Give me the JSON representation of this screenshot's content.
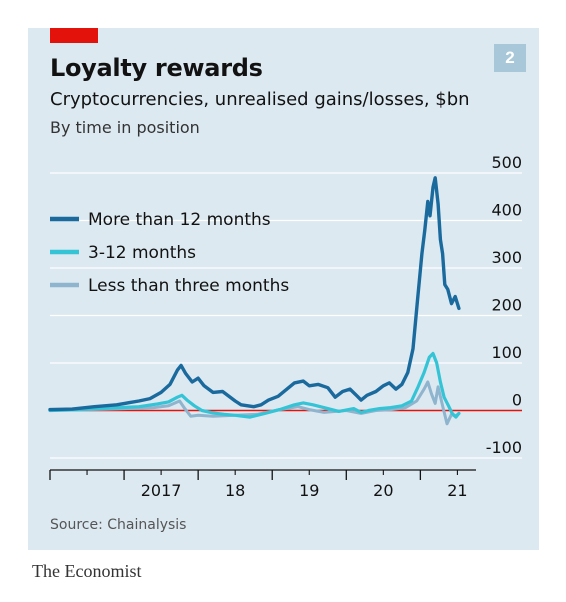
{
  "header": {
    "number_badge": "2",
    "title": "Loyalty rewards",
    "subtitle": "Cryptocurrencies, unrealised gains/losses, $bn",
    "subsubtitle": "By time in position"
  },
  "source": "Source: Chainalysis",
  "brand": "The Economist",
  "colors": {
    "background": "#dce9f1",
    "red_tag": "#e3120b",
    "badge": "#a8c8da",
    "series_long": "#1a6a9e",
    "series_mid": "#34c4d6",
    "series_short": "#8fb4cd",
    "zero_line": "#e3120b",
    "grid": "#ffffff"
  },
  "chart_data": {
    "type": "line",
    "title": "Loyalty rewards",
    "subtitle": "Cryptocurrencies, unrealised gains/losses, $bn",
    "xlabel": "",
    "ylabel": "",
    "xlim": [
      2016.0,
      2021.67
    ],
    "ylim": [
      -100,
      500
    ],
    "yticks": [
      -100,
      0,
      100,
      200,
      300,
      400,
      500
    ],
    "ytick_labels": [
      "-100",
      "0",
      "100",
      "200",
      "300",
      "400",
      "500"
    ],
    "xtick_labels": [
      {
        "x": 2017.0,
        "label": "2017"
      },
      {
        "x": 2018.0,
        "label": "18"
      },
      {
        "x": 2019.0,
        "label": "19"
      },
      {
        "x": 2020.0,
        "label": "20"
      },
      {
        "x": 2021.0,
        "label": "21"
      }
    ],
    "x_major_ticks": [
      2016.0,
      2017.0,
      2018.0,
      2019.0,
      2020.0,
      2021.0
    ],
    "x_minor_ticks": [
      2016.5,
      2017.5,
      2018.5,
      2019.5,
      2020.5,
      2021.5
    ],
    "grid": true,
    "legend_position": "top-left",
    "series": [
      {
        "name": "More than 12 months",
        "color": "#1a6a9e",
        "points": [
          [
            2016.0,
            2
          ],
          [
            2016.3,
            3
          ],
          [
            2016.6,
            8
          ],
          [
            2016.9,
            12
          ],
          [
            2017.2,
            20
          ],
          [
            2017.35,
            25
          ],
          [
            2017.5,
            38
          ],
          [
            2017.62,
            55
          ],
          [
            2017.72,
            85
          ],
          [
            2017.77,
            95
          ],
          [
            2017.83,
            78
          ],
          [
            2017.92,
            60
          ],
          [
            2018.0,
            68
          ],
          [
            2018.08,
            52
          ],
          [
            2018.2,
            38
          ],
          [
            2018.33,
            40
          ],
          [
            2018.5,
            20
          ],
          [
            2018.58,
            12
          ],
          [
            2018.75,
            8
          ],
          [
            2018.85,
            12
          ],
          [
            2018.95,
            22
          ],
          [
            2019.08,
            30
          ],
          [
            2019.3,
            58
          ],
          [
            2019.42,
            62
          ],
          [
            2019.5,
            52
          ],
          [
            2019.62,
            55
          ],
          [
            2019.75,
            48
          ],
          [
            2019.85,
            28
          ],
          [
            2019.95,
            40
          ],
          [
            2020.05,
            45
          ],
          [
            2020.15,
            30
          ],
          [
            2020.2,
            22
          ],
          [
            2020.28,
            32
          ],
          [
            2020.4,
            40
          ],
          [
            2020.5,
            52
          ],
          [
            2020.58,
            58
          ],
          [
            2020.67,
            45
          ],
          [
            2020.75,
            55
          ],
          [
            2020.83,
            80
          ],
          [
            2020.9,
            130
          ],
          [
            2020.96,
            230
          ],
          [
            2021.02,
            330
          ],
          [
            2021.06,
            380
          ],
          [
            2021.1,
            440
          ],
          [
            2021.13,
            410
          ],
          [
            2021.17,
            470
          ],
          [
            2021.2,
            490
          ],
          [
            2021.24,
            435
          ],
          [
            2021.27,
            360
          ],
          [
            2021.3,
            330
          ],
          [
            2021.33,
            265
          ],
          [
            2021.37,
            255
          ],
          [
            2021.42,
            225
          ],
          [
            2021.47,
            240
          ],
          [
            2021.52,
            215
          ]
        ]
      },
      {
        "name": "3-12 months",
        "color": "#34c4d6",
        "points": [
          [
            2016.0,
            0
          ],
          [
            2016.4,
            2
          ],
          [
            2016.8,
            5
          ],
          [
            2017.2,
            8
          ],
          [
            2017.45,
            14
          ],
          [
            2017.6,
            18
          ],
          [
            2017.72,
            28
          ],
          [
            2017.78,
            32
          ],
          [
            2017.85,
            22
          ],
          [
            2017.95,
            10
          ],
          [
            2018.05,
            0
          ],
          [
            2018.2,
            -5
          ],
          [
            2018.35,
            -8
          ],
          [
            2018.5,
            -10
          ],
          [
            2018.7,
            -14
          ],
          [
            2018.9,
            -6
          ],
          [
            2019.1,
            2
          ],
          [
            2019.3,
            12
          ],
          [
            2019.42,
            16
          ],
          [
            2019.55,
            12
          ],
          [
            2019.75,
            4
          ],
          [
            2019.9,
            -2
          ],
          [
            2020.1,
            4
          ],
          [
            2020.2,
            -4
          ],
          [
            2020.3,
            0
          ],
          [
            2020.45,
            4
          ],
          [
            2020.6,
            6
          ],
          [
            2020.75,
            10
          ],
          [
            2020.88,
            20
          ],
          [
            2020.97,
            50
          ],
          [
            2021.05,
            80
          ],
          [
            2021.12,
            112
          ],
          [
            2021.17,
            120
          ],
          [
            2021.22,
            100
          ],
          [
            2021.27,
            60
          ],
          [
            2021.32,
            28
          ],
          [
            2021.38,
            10
          ],
          [
            2021.43,
            -6
          ],
          [
            2021.48,
            -14
          ],
          [
            2021.52,
            -6
          ]
        ]
      },
      {
        "name": "Less than three months",
        "color": "#8fb4cd",
        "points": [
          [
            2016.0,
            0
          ],
          [
            2016.5,
            2
          ],
          [
            2017.0,
            4
          ],
          [
            2017.4,
            6
          ],
          [
            2017.6,
            10
          ],
          [
            2017.75,
            20
          ],
          [
            2017.82,
            4
          ],
          [
            2017.9,
            -12
          ],
          [
            2018.0,
            -10
          ],
          [
            2018.2,
            -12
          ],
          [
            2018.5,
            -10
          ],
          [
            2018.8,
            -8
          ],
          [
            2019.1,
            2
          ],
          [
            2019.35,
            8
          ],
          [
            2019.5,
            2
          ],
          [
            2019.7,
            -4
          ],
          [
            2020.0,
            0
          ],
          [
            2020.2,
            -6
          ],
          [
            2020.4,
            0
          ],
          [
            2020.6,
            2
          ],
          [
            2020.8,
            6
          ],
          [
            2020.95,
            20
          ],
          [
            2021.05,
            45
          ],
          [
            2021.1,
            60
          ],
          [
            2021.15,
            35
          ],
          [
            2021.2,
            15
          ],
          [
            2021.24,
            50
          ],
          [
            2021.3,
            10
          ],
          [
            2021.36,
            -28
          ],
          [
            2021.42,
            -8
          ],
          [
            2021.47,
            -12
          ],
          [
            2021.52,
            -6
          ]
        ]
      }
    ]
  }
}
